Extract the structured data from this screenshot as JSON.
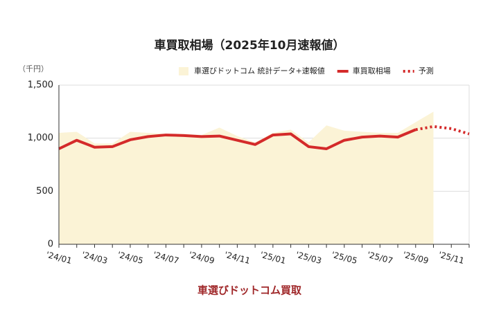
{
  "chart_data": {
    "type": "line",
    "title": "車買取相場（2025年10月速報値）",
    "y_unit": "（千円）",
    "footer": "車選びドットコム買取",
    "categories": [
      "'24/01",
      null,
      "'24/03",
      null,
      "'24/05",
      null,
      "'24/07",
      null,
      "'24/09",
      null,
      "'24/11",
      null,
      "'25/01",
      null,
      "'25/03",
      null,
      "'25/05",
      null,
      "'25/07",
      null,
      "'25/09",
      null,
      "'25/11",
      null
    ],
    "series": [
      {
        "name": "車選びドットコム 統計データ+速報値",
        "color": "#fbf3d6",
        "style": "area",
        "values": [
          1050,
          1060,
          950,
          950,
          1060,
          1050,
          1040,
          1040,
          1030,
          1100,
          1020,
          960,
          1050,
          1080,
          960,
          1120,
          1070,
          1060,
          1050,
          1050,
          1150,
          1250,
          null,
          null
        ]
      },
      {
        "name": "車買取相場",
        "color": "#d42a2a",
        "style": "solid",
        "values": [
          900,
          980,
          915,
          920,
          985,
          1015,
          1030,
          1025,
          1015,
          1020,
          980,
          940,
          1030,
          1040,
          920,
          900,
          980,
          1010,
          1020,
          1010,
          1080,
          null,
          null,
          null
        ]
      },
      {
        "name": "予測",
        "color": "#d42a2a",
        "style": "dotted",
        "values": [
          null,
          null,
          null,
          null,
          null,
          null,
          null,
          null,
          null,
          null,
          null,
          null,
          null,
          null,
          null,
          null,
          null,
          null,
          null,
          null,
          1080,
          1110,
          1090,
          1040
        ]
      }
    ],
    "ylim": [
      0,
      1500
    ],
    "yticks": [
      0,
      500,
      {
        "value": 1000,
        "label": "1,000"
      },
      {
        "value": 1500,
        "label": "1,500"
      }
    ],
    "grid": true
  }
}
